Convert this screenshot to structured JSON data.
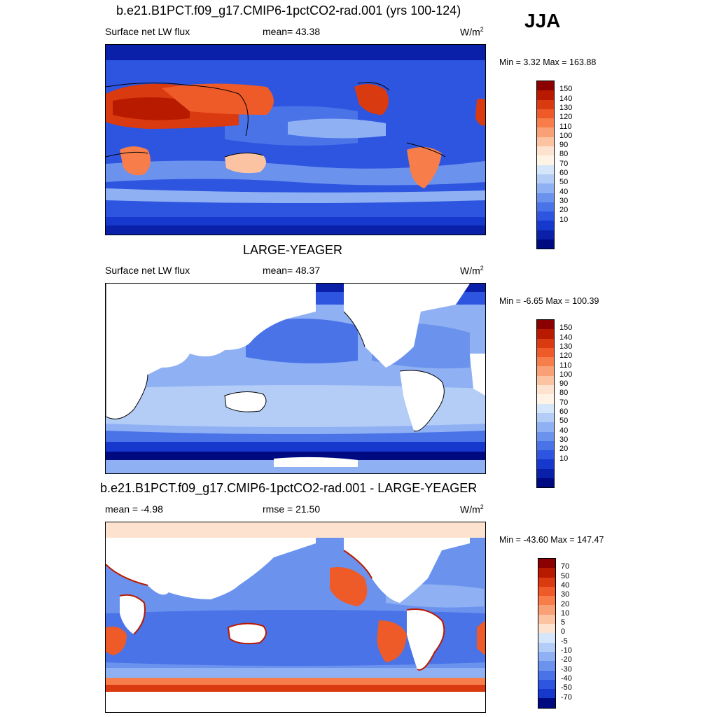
{
  "season": "JJA",
  "panel1": {
    "title": "b.e21.B1PCT.f09_g17.CMIP6-1pctCO2-rad.001 (yrs 100-124)",
    "variable": "Surface net LW flux",
    "stat": "mean=  43.38",
    "units_base": "W/m",
    "units_exp": "2",
    "minmax": "Min =   3.32 Max = 163.88"
  },
  "panel2": {
    "title": "LARGE-YEAGER",
    "variable": "Surface net LW flux",
    "stat": "mean=  48.37",
    "units_base": "W/m",
    "units_exp": "2",
    "minmax": "Min =  -6.65 Max = 100.39"
  },
  "panel3": {
    "title": "b.e21.B1PCT.f09_g17.CMIP6-1pctCO2-rad.001 - LARGE-YEAGER",
    "variable": "mean =  -4.98",
    "stat": "rmse =  21.50",
    "units_base": "W/m",
    "units_exp": "2",
    "minmax": "Min = -43.60 Max = 147.47"
  },
  "colorbar_abs": {
    "labels": [
      "150",
      "140",
      "130",
      "120",
      "110",
      "100",
      "90",
      "80",
      "70",
      "60",
      "50",
      "40",
      "30",
      "20",
      "10"
    ],
    "colors": [
      "#8b0000",
      "#b81a00",
      "#d93a0f",
      "#ee5a28",
      "#f77d4a",
      "#f9a077",
      "#fcc3a2",
      "#fde3cf",
      "#fff3e6",
      "#d5e6fb",
      "#b3cdf7",
      "#8fb1f3",
      "#6b93ee",
      "#4a73e8",
      "#2e55e0",
      "#1638cc",
      "#0a20a8",
      "#000a80"
    ]
  },
  "colorbar_diff": {
    "labels": [
      "70",
      "50",
      "40",
      "30",
      "20",
      "10",
      "5",
      "0",
      "-5",
      "-10",
      "-20",
      "-30",
      "-40",
      "-50",
      "-70"
    ],
    "colors": [
      "#8b0000",
      "#b81a00",
      "#d93a0f",
      "#ee5a28",
      "#f77d4a",
      "#f9a077",
      "#fcc3a2",
      "#fde3cf",
      "#d5e6fb",
      "#b3cdf7",
      "#8fb1f3",
      "#6b93ee",
      "#4a73e8",
      "#2e55e0",
      "#1638cc",
      "#000a80"
    ]
  }
}
